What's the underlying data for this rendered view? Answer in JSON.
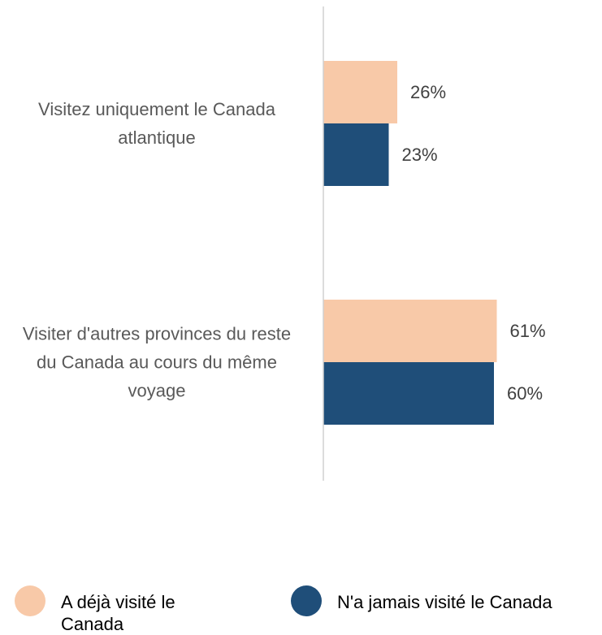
{
  "chart_data": {
    "type": "bar",
    "orientation": "horizontal",
    "categories": [
      "Visitez uniquement le Canada atlantique",
      "Visiter d'autres provinces du reste du Canada au cours du même voyage"
    ],
    "series": [
      {
        "name": "A déjà visité le Canada",
        "color": "#f8c9a8",
        "values": [
          26,
          61
        ],
        "value_labels": [
          "26%",
          "61%"
        ]
      },
      {
        "name": "N'a jamais visité le Canada",
        "color": "#1f4e79",
        "values": [
          23,
          60
        ],
        "value_labels": [
          "23%",
          "60%"
        ]
      }
    ],
    "xlim": [
      0,
      100
    ],
    "legend": "bottom"
  }
}
